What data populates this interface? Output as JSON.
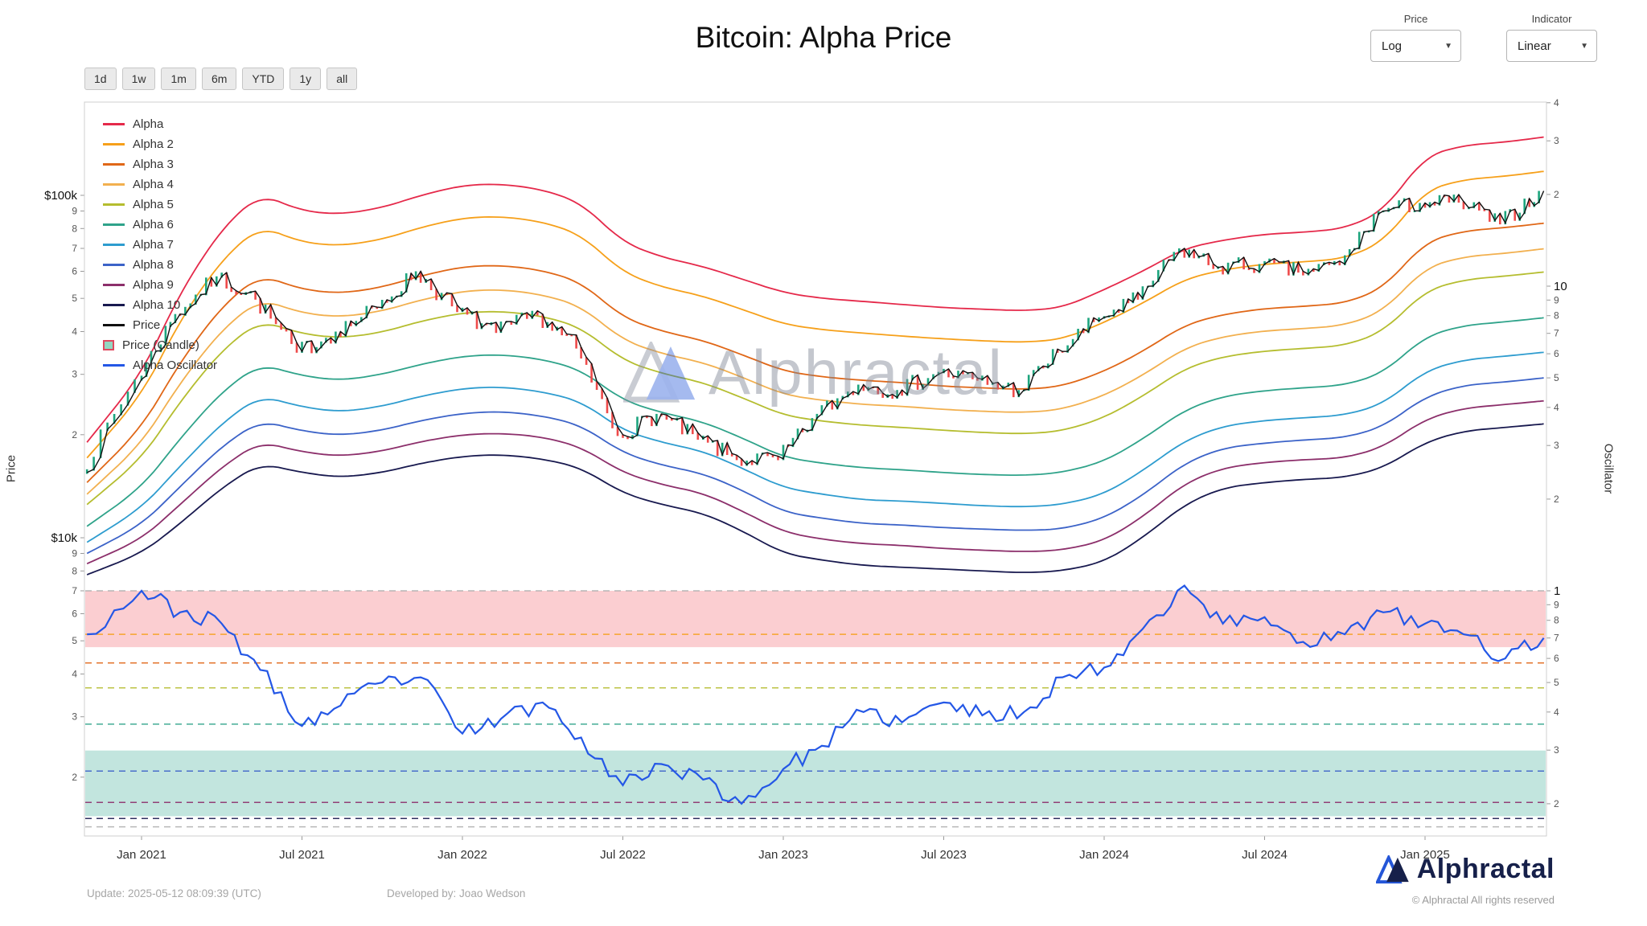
{
  "ui": {
    "title": "Bitcoin: Alpha Price",
    "controls": {
      "price_label": "Price",
      "price_value": "Log",
      "indicator_label": "Indicator",
      "indicator_value": "Linear"
    },
    "range_buttons": [
      "1d",
      "1w",
      "1m",
      "6m",
      "YTD",
      "1y",
      "all"
    ],
    "watermark_text": "Alphractal",
    "footer": {
      "update_text": "Update: 2025-05-12 08:09:39 (UTC)",
      "developed_text": "Developed by: Joao Wedson",
      "brand_text": "Alphractal",
      "rights_text": "© Alphractal All rights reserved"
    },
    "legend": [
      {
        "label": "Alpha",
        "color": "#e5294a",
        "type": "line"
      },
      {
        "label": "Alpha 2",
        "color": "#f6a01a",
        "type": "line"
      },
      {
        "label": "Alpha 3",
        "color": "#e06717",
        "type": "line"
      },
      {
        "label": "Alpha 4",
        "color": "#f2b04f",
        "type": "line"
      },
      {
        "label": "Alpha 5",
        "color": "#b5bd2f",
        "type": "line"
      },
      {
        "label": "Alpha 6",
        "color": "#2fa38a",
        "type": "line"
      },
      {
        "label": "Alpha 7",
        "color": "#2e9ccf",
        "type": "line"
      },
      {
        "label": "Alpha 8",
        "color": "#3c63c8",
        "type": "line"
      },
      {
        "label": "Alpha 9",
        "color": "#8c2f6b",
        "type": "line"
      },
      {
        "label": "Alpha 10",
        "color": "#18194f",
        "type": "line"
      },
      {
        "label": "Price",
        "color": "#101010",
        "type": "line"
      },
      {
        "label": "Price (Candle)",
        "color": "#2fa38a",
        "type": "candle"
      },
      {
        "label": "Alpha Oscillator",
        "color": "#2457e6",
        "type": "line"
      }
    ]
  },
  "chart_data": {
    "type": "line",
    "title": "Bitcoin: Alpha Price",
    "x_years": [
      2020.83,
      2021.0,
      2021.12,
      2021.25,
      2021.37,
      2021.5,
      2021.62,
      2021.75,
      2021.87,
      2022.0,
      2022.12,
      2022.25,
      2022.37,
      2022.5,
      2022.62,
      2022.75,
      2022.87,
      2023.0,
      2023.12,
      2023.25,
      2023.37,
      2023.5,
      2023.62,
      2023.75,
      2023.87,
      2024.0,
      2024.12,
      2024.25,
      2024.37,
      2024.5,
      2024.62,
      2024.75,
      2024.87,
      2025.0,
      2025.12,
      2025.25,
      2025.37
    ],
    "x_ticks": [
      {
        "t": 2021.0,
        "label": "Jan 2021"
      },
      {
        "t": 2021.5,
        "label": "Jul 2021"
      },
      {
        "t": 2022.0,
        "label": "Jan 2022"
      },
      {
        "t": 2022.5,
        "label": "Jul 2022"
      },
      {
        "t": 2023.0,
        "label": "Jan 2023"
      },
      {
        "t": 2023.5,
        "label": "Jul 2023"
      },
      {
        "t": 2024.0,
        "label": "Jan 2024"
      },
      {
        "t": 2024.5,
        "label": "Jul 2024"
      },
      {
        "t": 2025.0,
        "label": "Jan 2025"
      }
    ],
    "price_axis": {
      "title": "Price",
      "scale": "log",
      "units": "thousand_usd",
      "ticks": [
        {
          "v": 100,
          "label": "$100k",
          "major": true
        },
        {
          "v": 90,
          "label": "9"
        },
        {
          "v": 80,
          "label": "8"
        },
        {
          "v": 70,
          "label": "7"
        },
        {
          "v": 60,
          "label": "6"
        },
        {
          "v": 50,
          "label": "5"
        },
        {
          "v": 40,
          "label": "4"
        },
        {
          "v": 30,
          "label": "3"
        },
        {
          "v": 20,
          "label": "2"
        },
        {
          "v": 10,
          "label": "$10k",
          "major": true
        },
        {
          "v": 9,
          "label": "9"
        },
        {
          "v": 8,
          "label": "8"
        },
        {
          "v": 7,
          "label": "7"
        },
        {
          "v": 6,
          "label": "6"
        },
        {
          "v": 5,
          "label": "5"
        },
        {
          "v": 4,
          "label": "4"
        },
        {
          "v": 3,
          "label": "3"
        },
        {
          "v": 2,
          "label": "2"
        }
      ]
    },
    "oscillator_axis": {
      "title": "Oscillator",
      "scale": "log",
      "ticks": [
        {
          "v": 40,
          "label": "4"
        },
        {
          "v": 30,
          "label": "3"
        },
        {
          "v": 20,
          "label": "2"
        },
        {
          "v": 10,
          "label": "10",
          "major": true
        },
        {
          "v": 9,
          "label": "9"
        },
        {
          "v": 8,
          "label": "8"
        },
        {
          "v": 7,
          "label": "7"
        },
        {
          "v": 6,
          "label": "6"
        },
        {
          "v": 5,
          "label": "5"
        },
        {
          "v": 4,
          "label": "4"
        },
        {
          "v": 3,
          "label": "3"
        },
        {
          "v": 2,
          "label": "2"
        },
        {
          "v": 1,
          "label": "1",
          "major": true
        },
        {
          "v": 0.9,
          "label": "9"
        },
        {
          "v": 0.8,
          "label": "8"
        },
        {
          "v": 0.7,
          "label": "7"
        },
        {
          "v": 0.6,
          "label": "6"
        },
        {
          "v": 0.5,
          "label": "5"
        },
        {
          "v": 0.4,
          "label": "4"
        },
        {
          "v": 0.3,
          "label": "3"
        },
        {
          "v": 0.2,
          "label": "2"
        }
      ]
    },
    "candle_up_color": "#1ea57e",
    "candle_down_color": "#ee4b4b",
    "zones": [
      {
        "axis": "oscillator",
        "from": 0.653,
        "to": 1.0,
        "color": "#f7a6ac",
        "opacity": 0.55
      },
      {
        "axis": "oscillator",
        "from": 0.182,
        "to": 0.299,
        "color": "#8fd0c2",
        "opacity": 0.55
      }
    ],
    "dashed_levels": [
      {
        "v": 1.0,
        "color": "#b0b0b0"
      },
      {
        "v": 0.72,
        "color": "#f6a01a"
      },
      {
        "v": 0.58,
        "color": "#e06717"
      },
      {
        "v": 0.48,
        "color": "#b5bd2f"
      },
      {
        "v": 0.365,
        "color": "#2fa38a"
      },
      {
        "v": 0.256,
        "color": "#3c63c8"
      },
      {
        "v": 0.202,
        "color": "#8c2f6b"
      },
      {
        "v": 0.179,
        "color": "#18194f"
      },
      {
        "v": 0.168,
        "color": "#b0b0b0"
      }
    ],
    "series": [
      {
        "id": "alpha",
        "name": "Alpha",
        "color": "#e5294a",
        "style": "band",
        "axis": "price",
        "values": [
          19,
          30,
          52,
          80,
          101,
          90,
          88,
          92,
          100,
          107,
          108,
          104,
          95,
          73,
          66,
          62,
          57,
          52,
          50,
          49,
          48,
          47,
          46.5,
          46,
          47,
          53,
          60,
          70,
          74,
          77,
          78,
          80,
          90,
          130,
          140,
          143,
          148
        ]
      },
      {
        "id": "alpha2",
        "name": "Alpha 2",
        "color": "#f6a01a",
        "style": "band",
        "axis": "price",
        "values": [
          17.1,
          26.0,
          43.2,
          64.9,
          81.3,
          72.9,
          71.2,
          74.3,
          80.6,
          85.9,
          86.8,
          83.7,
          76.7,
          59.6,
          54.0,
          50.8,
          46.5,
          42.1,
          40.5,
          39.6,
          38.8,
          38.1,
          37.6,
          37.2,
          38.0,
          42.5,
          48.4,
          56.9,
          60.6,
          63.0,
          63.9,
          65.4,
          73.2,
          103.2,
          111.2,
          113.7,
          117.5
        ]
      },
      {
        "id": "alpha3",
        "name": "Alpha 3",
        "color": "#e06717",
        "style": "band",
        "axis": "price",
        "values": [
          14.5,
          20.9,
          32.6,
          47.4,
          58.6,
          53.1,
          51.7,
          53.9,
          58.2,
          61.9,
          62.5,
          60.4,
          55.7,
          44.0,
          40.1,
          37.7,
          34.3,
          30.7,
          29.5,
          28.8,
          28.4,
          27.7,
          27.4,
          27.1,
          27.7,
          30.6,
          35.0,
          41.8,
          44.9,
          46.7,
          47.4,
          48.4,
          53.6,
          73.0,
          78.7,
          80.5,
          82.9
        ]
      },
      {
        "id": "alpha4",
        "name": "Alpha 4",
        "color": "#f2b04f",
        "style": "band",
        "axis": "price",
        "values": [
          13.4,
          18.8,
          28.4,
          40.5,
          49.8,
          45.3,
          44.1,
          45.9,
          49.5,
          52.5,
          53.1,
          51.3,
          47.4,
          37.8,
          34.5,
          32.5,
          29.5,
          26.2,
          25.2,
          24.5,
          24.2,
          23.7,
          23.4,
          23.2,
          23.7,
          26.0,
          29.8,
          35.8,
          38.7,
          40.2,
          40.8,
          41.7,
          45.9,
          61.4,
          66.2,
          67.7,
          69.8
        ]
      },
      {
        "id": "alpha5",
        "name": "Alpha 5",
        "color": "#b5bd2f",
        "style": "band",
        "axis": "price",
        "values": [
          12.5,
          17.0,
          25.0,
          35.3,
          43.1,
          39.4,
          38.3,
          39.8,
          42.9,
          45.4,
          45.9,
          44.4,
          41.1,
          33.0,
          30.2,
          28.4,
          25.7,
          22.8,
          21.9,
          21.3,
          21.0,
          20.6,
          20.3,
          20.1,
          20.5,
          22.4,
          25.9,
          31.2,
          33.8,
          35.1,
          35.7,
          36.4,
          40.0,
          52.6,
          56.7,
          58.1,
          59.7
        ]
      },
      {
        "id": "alpha6",
        "name": "Alpha 6",
        "color": "#2fa38a",
        "style": "band",
        "axis": "price",
        "values": [
          10.8,
          14.0,
          19.5,
          26.7,
          32.2,
          29.7,
          28.8,
          30.0,
          32.1,
          33.9,
          34.3,
          33.2,
          30.9,
          25.2,
          23.2,
          21.8,
          19.6,
          17.2,
          16.5,
          16.0,
          15.8,
          15.5,
          15.3,
          15.2,
          15.5,
          16.7,
          19.4,
          23.6,
          25.9,
          26.9,
          27.4,
          27.9,
          30.3,
          38.7,
          41.7,
          42.7,
          43.9
        ]
      },
      {
        "id": "alpha7",
        "name": "Alpha 7",
        "color": "#2e9ccf",
        "style": "band",
        "axis": "price",
        "values": [
          9.7,
          12.2,
          16.2,
          21.6,
          26.0,
          24.1,
          23.3,
          24.2,
          25.9,
          27.3,
          27.6,
          26.7,
          25.0,
          20.6,
          19.0,
          17.9,
          16.0,
          14.0,
          13.4,
          12.9,
          12.8,
          12.6,
          12.4,
          12.3,
          12.5,
          13.4,
          15.7,
          19.2,
          21.2,
          22.0,
          22.4,
          22.8,
          24.6,
          30.7,
          33.1,
          33.9,
          34.8
        ]
      },
      {
        "id": "alpha8",
        "name": "Alpha 8",
        "color": "#3c63c8",
        "style": "band",
        "axis": "price",
        "values": [
          9.0,
          10.9,
          14.1,
          18.5,
          22.0,
          20.5,
          19.9,
          20.6,
          22.0,
          23.1,
          23.4,
          22.7,
          21.3,
          17.7,
          16.3,
          15.4,
          13.8,
          11.9,
          11.4,
          11.0,
          10.9,
          10.7,
          10.6,
          10.5,
          10.6,
          11.4,
          13.3,
          16.5,
          18.3,
          18.9,
          19.3,
          19.6,
          21.1,
          25.8,
          27.9,
          28.5,
          29.3
        ]
      },
      {
        "id": "alpha9",
        "name": "Alpha 9",
        "color": "#8c2f6b",
        "style": "band",
        "axis": "price",
        "values": [
          8.4,
          9.9,
          12.5,
          16.1,
          19.1,
          17.8,
          17.3,
          17.9,
          19.1,
          20.0,
          20.2,
          19.7,
          18.4,
          15.5,
          14.3,
          13.5,
          12.0,
          10.4,
          9.9,
          9.6,
          9.5,
          9.3,
          9.2,
          9.1,
          9.2,
          9.8,
          11.5,
          14.4,
          16.0,
          16.6,
          16.9,
          17.1,
          18.4,
          22.2,
          23.9,
          24.5,
          25.1
        ]
      },
      {
        "id": "alpha10",
        "name": "Alpha 10",
        "color": "#18194f",
        "style": "band",
        "axis": "price",
        "values": [
          7.8,
          9.0,
          11.0,
          14.0,
          16.5,
          15.5,
          15.0,
          15.5,
          16.5,
          17.3,
          17.5,
          17.0,
          16.0,
          13.5,
          12.5,
          11.8,
          10.5,
          9.0,
          8.6,
          8.3,
          8.2,
          8.1,
          8.0,
          7.9,
          8.0,
          8.5,
          10.0,
          12.5,
          14.0,
          14.5,
          14.8,
          15.0,
          16.0,
          19.0,
          20.5,
          21.0,
          21.5
        ]
      },
      {
        "id": "price",
        "name": "Price",
        "color": "#101010",
        "style": "price",
        "axis": "price",
        "values": [
          15.5,
          29,
          45,
          58,
          50,
          35,
          40,
          47,
          60,
          46,
          40,
          45,
          36,
          20,
          23,
          19.5,
          17,
          17,
          23,
          28,
          27,
          30.5,
          29,
          27,
          35,
          44,
          50,
          70,
          62,
          63,
          60,
          63,
          90,
          95,
          96,
          83,
          103
        ]
      },
      {
        "id": "oscillator",
        "name": "Alpha Oscillator",
        "color": "#2457e6",
        "style": "oscillator",
        "axis": "oscillator",
        "values": [
          0.72,
          1.0,
          0.85,
          0.78,
          0.55,
          0.36,
          0.42,
          0.5,
          0.52,
          0.34,
          0.38,
          0.43,
          0.33,
          0.23,
          0.27,
          0.24,
          0.2,
          0.26,
          0.31,
          0.4,
          0.37,
          0.43,
          0.39,
          0.4,
          0.52,
          0.56,
          0.75,
          1.04,
          0.78,
          0.82,
          0.68,
          0.72,
          0.85,
          0.78,
          0.72,
          0.6,
          0.7
        ]
      }
    ]
  }
}
